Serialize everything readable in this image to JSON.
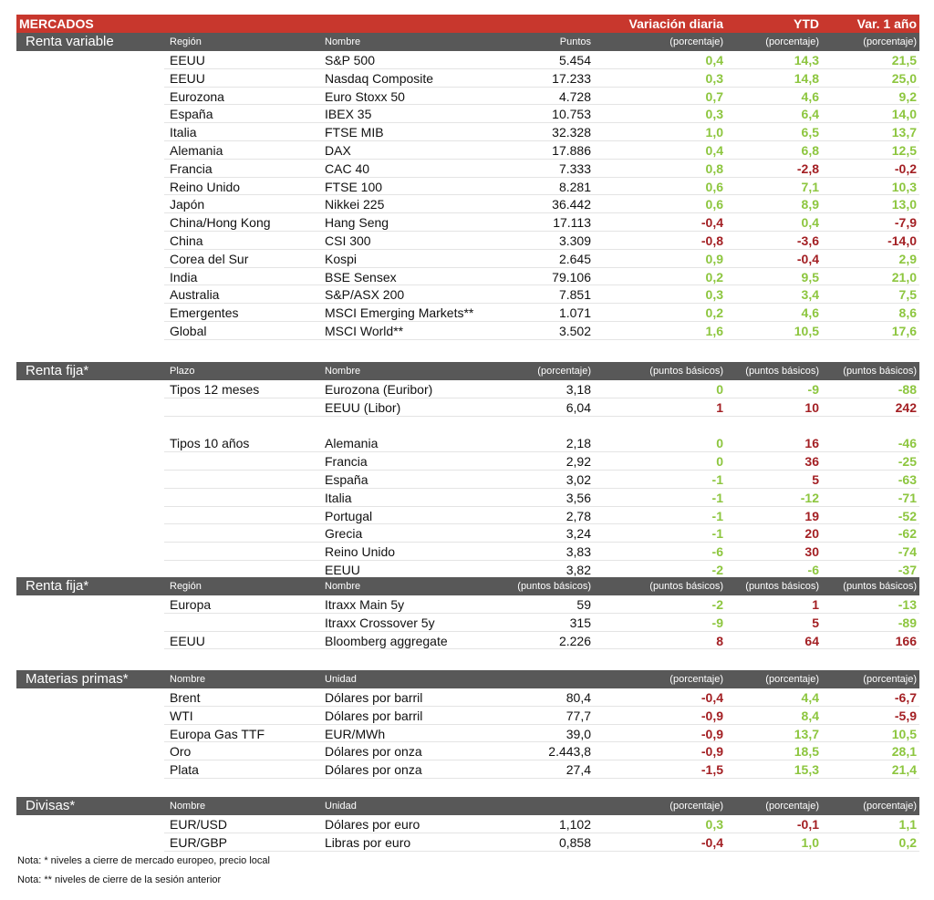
{
  "header": {
    "title": "MERCADOS",
    "day": "Variación diaria",
    "ytd": "YTD",
    "year": "Var. 1 año"
  },
  "colors": {
    "good": "#8dc63f",
    "bad": "#a31f23"
  },
  "sections": [
    {
      "title": "Renta variable",
      "good_when": "up",
      "headers": {
        "region": "Región",
        "name": "Nombre",
        "level": "Puntos",
        "day": "(porcentaje)",
        "ytd": "(porcentaje)",
        "year": "(porcentaje)"
      },
      "rows": [
        {
          "region": "EEUU",
          "name": "S&P 500",
          "level": "5.454",
          "day": "0,4",
          "ytd": "14,3",
          "year": "21,5"
        },
        {
          "region": "EEUU",
          "name": "Nasdaq Composite",
          "level": "17.233",
          "day": "0,3",
          "ytd": "14,8",
          "year": "25,0"
        },
        {
          "region": "Eurozona",
          "name": "Euro Stoxx 50",
          "level": "4.728",
          "day": "0,7",
          "ytd": "4,6",
          "year": "9,2"
        },
        {
          "region": "España",
          "name": "IBEX 35",
          "level": "10.753",
          "day": "0,3",
          "ytd": "6,4",
          "year": "14,0"
        },
        {
          "region": "Italia",
          "name": "FTSE MIB",
          "level": "32.328",
          "day": "1,0",
          "ytd": "6,5",
          "year": "13,7"
        },
        {
          "region": "Alemania",
          "name": "DAX",
          "level": "17.886",
          "day": "0,4",
          "ytd": "6,8",
          "year": "12,5"
        },
        {
          "region": "Francia",
          "name": "CAC 40",
          "level": "7.333",
          "day": "0,8",
          "ytd": "-2,8",
          "year": "-0,2"
        },
        {
          "region": "Reino Unido",
          "name": "FTSE 100",
          "level": "8.281",
          "day": "0,6",
          "ytd": "7,1",
          "year": "10,3"
        },
        {
          "region": "Japón",
          "name": "Nikkei 225",
          "level": "36.442",
          "day": "0,6",
          "ytd": "8,9",
          "year": "13,0"
        },
        {
          "region": "China/Hong Kong",
          "name": "Hang Seng",
          "level": "17.113",
          "day": "-0,4",
          "ytd": "0,4",
          "year": "-7,9"
        },
        {
          "region": "China",
          "name": "CSI 300",
          "level": "3.309",
          "day": "-0,8",
          "ytd": "-3,6",
          "year": "-14,0"
        },
        {
          "region": "Corea del Sur",
          "name": "Kospi",
          "level": "2.645",
          "day": "0,9",
          "ytd": "-0,4",
          "year": "2,9"
        },
        {
          "region": "India",
          "name": "BSE Sensex",
          "level": "79.106",
          "day": "0,2",
          "ytd": "9,5",
          "year": "21,0"
        },
        {
          "region": "Australia",
          "name": "S&P/ASX 200",
          "level": "7.851",
          "day": "0,3",
          "ytd": "3,4",
          "year": "7,5"
        },
        {
          "region": "Emergentes",
          "name": "MSCI Emerging Markets**",
          "level": "1.071",
          "day": "0,2",
          "ytd": "4,6",
          "year": "8,6"
        },
        {
          "region": "Global",
          "name": "MSCI World**",
          "level": "3.502",
          "day": "1,6",
          "ytd": "10,5",
          "year": "17,6"
        }
      ]
    },
    {
      "title": "Renta fija*",
      "good_when": "down",
      "headers": {
        "region": "Plazo",
        "name": "Nombre",
        "level": "(porcentaje)",
        "day": "(puntos básicos)",
        "ytd": "(puntos básicos)",
        "year": "(puntos básicos)"
      },
      "rows": [
        {
          "region": "Tipos 12 meses",
          "name": "Eurozona (Euribor)",
          "level": "3,18",
          "day": "0",
          "ytd": "-9",
          "year": "-88"
        },
        {
          "name": "EEUU (Libor)",
          "level": "6,04",
          "day": "1",
          "ytd": "10",
          "year": "242"
        },
        {
          "region": "Tipos 10 años",
          "name": "Alemania",
          "level": "2,18",
          "day": "0",
          "ytd": "16",
          "year": "-46"
        },
        {
          "name": "Francia",
          "level": "2,92",
          "day": "0",
          "ytd": "36",
          "year": "-25"
        },
        {
          "name": "España",
          "level": "3,02",
          "day": "-1",
          "ytd": "5",
          "year": "-63"
        },
        {
          "name": "Italia",
          "level": "3,56",
          "day": "-1",
          "ytd": "-12",
          "year": "-71"
        },
        {
          "name": "Portugal",
          "level": "2,78",
          "day": "-1",
          "ytd": "19",
          "year": "-52"
        },
        {
          "name": "Grecia",
          "level": "3,24",
          "day": "-1",
          "ytd": "20",
          "year": "-62"
        },
        {
          "name": "Reino Unido",
          "level": "3,83",
          "day": "-6",
          "ytd": "30",
          "year": "-74"
        },
        {
          "name": "EEUU",
          "level": "3,82",
          "day": "-2",
          "ytd": "-6",
          "year": "-37"
        }
      ]
    },
    {
      "title": "Renta fija*",
      "good_when": "down",
      "headers": {
        "region": "Región",
        "name": "Nombre",
        "level": "(puntos básicos)",
        "day": "(puntos básicos)",
        "ytd": "(puntos básicos)",
        "year": "(puntos básicos)"
      },
      "rows": [
        {
          "region": "Europa",
          "name": "Itraxx Main 5y",
          "level": "59",
          "day": "-2",
          "ytd": "1",
          "year": "-13"
        },
        {
          "name": "Itraxx Crossover 5y",
          "level": "315",
          "day": "-9",
          "ytd": "5",
          "year": "-89"
        },
        {
          "region": "EEUU",
          "name": "Bloomberg aggregate",
          "level": "2.226",
          "day": "8",
          "ytd": "64",
          "year": "166"
        }
      ]
    },
    {
      "title": "Materias primas*",
      "good_when": "up",
      "headers": {
        "region": "Nombre",
        "name": "Unidad",
        "day": "(porcentaje)",
        "ytd": "(porcentaje)",
        "year": "(porcentaje)"
      },
      "rows": [
        {
          "region": "Brent",
          "name": "Dólares por barril",
          "level": "80,4",
          "day": "-0,4",
          "ytd": "4,4",
          "year": "-6,7"
        },
        {
          "region": "WTI",
          "name": "Dólares por barril",
          "level": "77,7",
          "day": "-0,9",
          "ytd": "8,4",
          "year": "-5,9"
        },
        {
          "region": "Europa Gas TTF",
          "name": "EUR/MWh",
          "level": "39,0",
          "day": "-0,9",
          "ytd": "13,7",
          "year": "10,5"
        },
        {
          "region": "Oro",
          "name": "Dólares por onza",
          "level": "2.443,8",
          "day": "-0,9",
          "ytd": "18,5",
          "year": "28,1"
        },
        {
          "region": "Plata",
          "name": "Dólares por onza",
          "level": "27,4",
          "day": "-1,5",
          "ytd": "15,3",
          "year": "21,4"
        }
      ]
    },
    {
      "title": "Divisas*",
      "good_when": "up",
      "headers": {
        "region": "Nombre",
        "name": "Unidad",
        "day": "(porcentaje)",
        "ytd": "(porcentaje)",
        "year": "(porcentaje)"
      },
      "rows": [
        {
          "region": "EUR/USD",
          "name": "Dólares por euro",
          "level": "1,102",
          "day": "0,3",
          "ytd": "-0,1",
          "year": "1,1"
        },
        {
          "region": "EUR/GBP",
          "name": "Libras por euro",
          "level": "0,858",
          "day": "-0,4",
          "ytd": "1,0",
          "year": "0,2"
        }
      ]
    }
  ],
  "notes": [
    "Nota: * niveles a cierre de mercado europeo, precio local",
    "Nota: ** niveles de cierre de la sesión anterior"
  ]
}
